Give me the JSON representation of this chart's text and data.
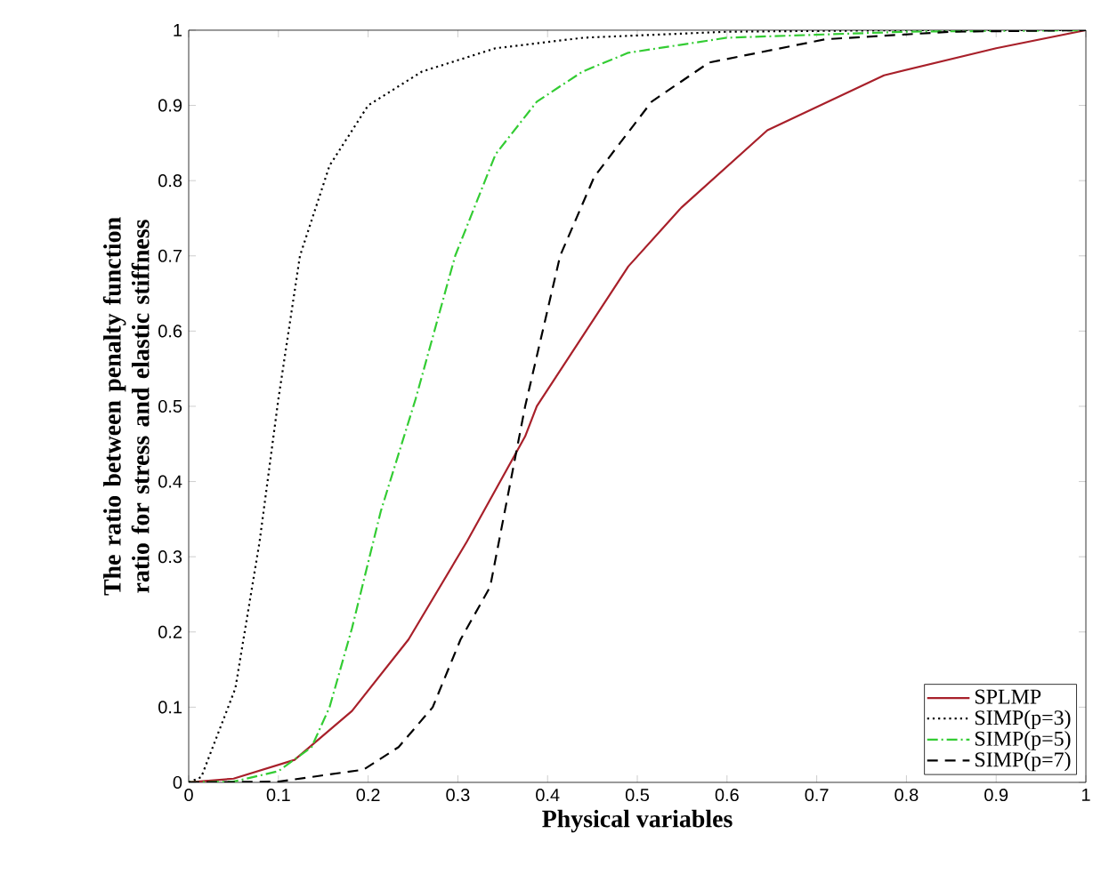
{
  "chart_data": {
    "type": "line",
    "xlabel": "Physical variables",
    "ylabel": "The ratio between penalty function ratio for stress and elastic stiffness",
    "xlim": [
      0,
      1
    ],
    "ylim": [
      0,
      1
    ],
    "xticks": [
      0,
      0.1,
      0.2,
      0.3,
      0.4,
      0.5,
      0.6,
      0.7,
      0.8,
      0.9,
      1
    ],
    "yticks": [
      0,
      0.1,
      0.2,
      0.3,
      0.4,
      0.5,
      0.6,
      0.7,
      0.8,
      0.9,
      1
    ],
    "grid": false,
    "legend": "bottom right",
    "marker": "none",
    "series": [
      {
        "name": "SPLMP",
        "color": "#a8202a",
        "line_style": "solid",
        "x": [
          0,
          0.05,
          0.118,
          0.182,
          0.245,
          0.31,
          0.375,
          0.388,
          0.49,
          0.549,
          0.645,
          0.775,
          0.9,
          1
        ],
        "values": [
          0,
          0.005,
          0.03,
          0.095,
          0.19,
          0.32,
          0.46,
          0.5,
          0.686,
          0.764,
          0.867,
          0.94,
          0.976,
          1
        ]
      },
      {
        "name": "SIMP(p=3)",
        "color": "#000000",
        "line_style": "dotted",
        "x": [
          0,
          0.014,
          0.052,
          0.079,
          0.1,
          0.124,
          0.157,
          0.2,
          0.26,
          0.342,
          0.44,
          0.6,
          0.8,
          1
        ],
        "values": [
          0,
          0.007,
          0.125,
          0.32,
          0.51,
          0.7,
          0.82,
          0.9,
          0.945,
          0.976,
          0.99,
          0.998,
          1,
          1
        ]
      },
      {
        "name": "SIMP(p=5)",
        "color": "#33cc33",
        "line_style": "dashdot",
        "x": [
          0,
          0.05,
          0.1,
          0.137,
          0.157,
          0.182,
          0.214,
          0.253,
          0.297,
          0.342,
          0.388,
          0.439,
          0.49,
          0.6,
          0.8,
          1
        ],
        "values": [
          0,
          0.001,
          0.015,
          0.047,
          0.1,
          0.205,
          0.36,
          0.51,
          0.7,
          0.835,
          0.905,
          0.945,
          0.97,
          0.99,
          0.998,
          1
        ]
      },
      {
        "name": "SIMP(p=7)",
        "color": "#000000",
        "line_style": "dashed",
        "x": [
          0,
          0.1,
          0.195,
          0.234,
          0.272,
          0.303,
          0.336,
          0.375,
          0.414,
          0.452,
          0.516,
          0.58,
          0.71,
          0.85,
          1
        ],
        "values": [
          0,
          0.001,
          0.017,
          0.047,
          0.1,
          0.19,
          0.26,
          0.5,
          0.7,
          0.805,
          0.905,
          0.957,
          0.988,
          0.998,
          1
        ]
      }
    ]
  }
}
